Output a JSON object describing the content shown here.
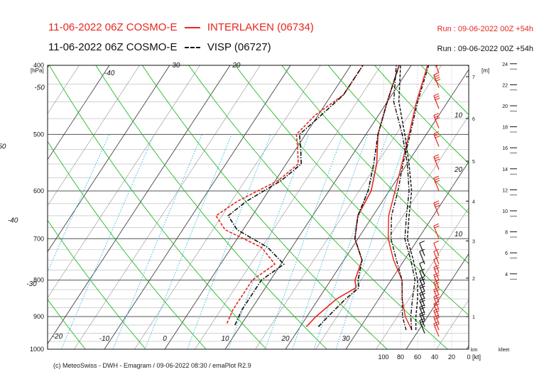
{
  "header": {
    "line1_model": "11-06-2022 06Z COSMO-E",
    "line1_station": "INTERLAKEN (06734)",
    "line2_model": "11-06-2022 06Z COSMO-E",
    "line2_station": "VISP (06727)",
    "run1": "Run : 09-06-2022 00Z +54h",
    "run2": "Run : 09-06-2022 00Z +54h"
  },
  "footer": "(c) MeteoSwiss - DWH - Emagram / 09-06-2022  08:30 / emaPlot R2.9",
  "colors": {
    "red": "#e8261e",
    "black": "#111111",
    "dry_adiabat": "#22bb22",
    "mixing_ratio": "#33bbdd",
    "isotherm": "#222222"
  },
  "chart_data": {
    "type": "line",
    "chart_kind": "emagram",
    "ylabel": "[hPa]",
    "y_scale": "log",
    "ylim": [
      1000,
      400
    ],
    "pressure_ticks": [
      "400",
      "500",
      "600",
      "700",
      "800",
      "900",
      "1000"
    ],
    "temp_ticks_bottom": [
      "-10",
      "0",
      "10",
      "20",
      "30"
    ],
    "temp_labels_skew": [
      "-60",
      "-50",
      "-40",
      "-30",
      "-20",
      "-60",
      "-50",
      "-40",
      "-30",
      "-20",
      "10",
      "20",
      "10"
    ],
    "height_km_label": "[m]",
    "height_km_ticks": [
      "1",
      "2",
      "3",
      "4",
      "5",
      "6",
      "7"
    ],
    "height_km_axis_label": "km",
    "wind_axis_label": "[kt]",
    "wind_ticks": [
      "100",
      "80",
      "60",
      "40",
      "20",
      "0"
    ],
    "kfeet_label": "kfeet",
    "kfeet_ticks": [
      "24",
      "22",
      "20",
      "18",
      "16",
      "14",
      "12",
      "10",
      "8",
      "6",
      "4"
    ],
    "series": [
      {
        "name": "INTERLAKEN (06734)",
        "station_color": "red",
        "line_style": "solid",
        "temperature": [
          [
            930,
            21.0
          ],
          [
            900,
            21.5
          ],
          [
            850,
            23.0
          ],
          [
            820,
            25.0
          ],
          [
            800,
            24.0
          ],
          [
            750,
            23.0
          ],
          [
            700,
            19.5
          ],
          [
            650,
            17.5
          ],
          [
            600,
            17.0
          ],
          [
            550,
            15.0
          ],
          [
            500,
            12.0
          ],
          [
            450,
            10.0
          ],
          [
            400,
            8.0
          ]
        ],
        "dewpoint": [
          [
            920,
            7.5
          ],
          [
            880,
            7.0
          ],
          [
            850,
            7.0
          ],
          [
            800,
            7.0
          ],
          [
            760,
            9.0
          ],
          [
            720,
            5.0
          ],
          [
            680,
            -3.0
          ],
          [
            650,
            -6.0
          ],
          [
            620,
            -4.0
          ],
          [
            580,
            0.5
          ],
          [
            550,
            2.0
          ],
          [
            520,
            0.0
          ],
          [
            500,
            -1.5
          ],
          [
            470,
            -0.5
          ],
          [
            440,
            2.0
          ],
          [
            400,
            2.0
          ]
        ]
      },
      {
        "name": "VISP (06727)",
        "station_color": "black",
        "line_style": "dash-dot",
        "temperature": [
          [
            930,
            23.0
          ],
          [
            900,
            23.5
          ],
          [
            850,
            24.5
          ],
          [
            820,
            25.5
          ],
          [
            800,
            24.5
          ],
          [
            750,
            23.0
          ],
          [
            700,
            19.5
          ],
          [
            650,
            17.5
          ],
          [
            600,
            16.5
          ],
          [
            550,
            14.5
          ],
          [
            500,
            12.0
          ],
          [
            450,
            10.0
          ],
          [
            400,
            8.0
          ]
        ],
        "dewpoint": [
          [
            925,
            9.0
          ],
          [
            880,
            8.5
          ],
          [
            850,
            8.5
          ],
          [
            800,
            8.5
          ],
          [
            760,
            10.5
          ],
          [
            720,
            6.0
          ],
          [
            680,
            -1.0
          ],
          [
            650,
            -4.0
          ],
          [
            620,
            -2.5
          ],
          [
            580,
            1.0
          ],
          [
            550,
            2.5
          ],
          [
            520,
            0.5
          ],
          [
            500,
            -1.0
          ],
          [
            470,
            0.5
          ],
          [
            440,
            2.0
          ],
          [
            400,
            2.0
          ]
        ]
      }
    ],
    "height_profiles": [
      {
        "station": "INTERLAKEN (06734)",
        "style": "solid",
        "points": [
          [
            940,
            2.0
          ],
          [
            900,
            0.5
          ],
          [
            850,
            -0.5
          ],
          [
            800,
            -1.0
          ],
          [
            750,
            -3.0
          ],
          [
            700,
            -4.5
          ],
          [
            650,
            -5.0
          ],
          [
            600,
            -4.5
          ],
          [
            550,
            -4.0
          ],
          [
            500,
            -3.5
          ],
          [
            450,
            -3.0
          ],
          [
            400,
            -2.0
          ]
        ]
      },
      {
        "station": "VISP (06727)",
        "style": "dash-dot",
        "points": [
          [
            940,
            1.0
          ],
          [
            900,
            0.0
          ],
          [
            850,
            -0.5
          ],
          [
            800,
            -1.0
          ],
          [
            750,
            -2.5
          ],
          [
            700,
            -4.0
          ],
          [
            650,
            -4.5
          ],
          [
            600,
            -4.0
          ],
          [
            550,
            -3.8
          ],
          [
            500,
            -3.3
          ],
          [
            450,
            -2.8
          ],
          [
            400,
            -1.8
          ]
        ]
      }
    ],
    "wind_speed_profiles": [
      {
        "station": "VISP (06727)",
        "style": "dash-dot",
        "points": [
          [
            940,
            67
          ],
          [
            900,
            68
          ],
          [
            850,
            66
          ],
          [
            800,
            63
          ],
          [
            750,
            68
          ],
          [
            700,
            75
          ],
          [
            650,
            73
          ],
          [
            600,
            70
          ],
          [
            550,
            72
          ],
          [
            500,
            78
          ],
          [
            450,
            88
          ],
          [
            400,
            85
          ]
        ]
      },
      {
        "station": "INTERLAKEN (06734)",
        "style": "dashed",
        "points": [
          [
            940,
            62
          ],
          [
            900,
            62
          ],
          [
            850,
            60
          ],
          [
            800,
            60
          ],
          [
            750,
            65
          ],
          [
            700,
            72
          ],
          [
            650,
            70
          ],
          [
            600,
            67
          ],
          [
            550,
            70
          ],
          [
            500,
            75
          ],
          [
            450,
            82
          ],
          [
            400,
            80
          ]
        ]
      }
    ],
    "wind_barbs": {
      "INTERLAKEN (06734)": [
        [
          960,
          20
        ],
        [
          940,
          20
        ],
        [
          920,
          20
        ],
        [
          900,
          20
        ],
        [
          880,
          20
        ],
        [
          860,
          20
        ],
        [
          840,
          15
        ],
        [
          820,
          15
        ],
        [
          800,
          15
        ],
        [
          780,
          10
        ],
        [
          760,
          10
        ],
        [
          740,
          10
        ],
        [
          700,
          20
        ],
        [
          650,
          25
        ],
        [
          600,
          30
        ],
        [
          560,
          30
        ],
        [
          520,
          30
        ],
        [
          490,
          30
        ],
        [
          460,
          30
        ],
        [
          430,
          35
        ],
        [
          410,
          35
        ]
      ],
      "VISP (06727)": [
        [
          950,
          20
        ],
        [
          930,
          20
        ],
        [
          910,
          20
        ],
        [
          890,
          15
        ],
        [
          870,
          15
        ],
        [
          850,
          15
        ],
        [
          830,
          15
        ],
        [
          810,
          10
        ],
        [
          790,
          10
        ],
        [
          760,
          10
        ],
        [
          740,
          10
        ]
      ]
    },
    "grid": true
  }
}
